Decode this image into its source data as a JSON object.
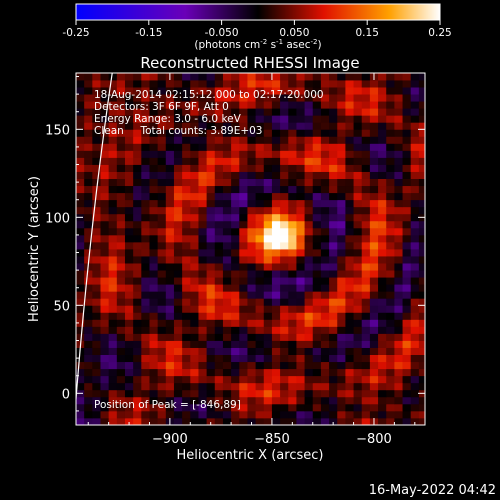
{
  "chart_data": {
    "type": "heatmap",
    "title": "Reconstructed RHESSI Image",
    "xlabel": "Heliocentric X (arcsec)",
    "ylabel": "Heliocentric Y (arcsec)",
    "xlim": [
      -946,
      -775
    ],
    "ylim": [
      -18,
      182
    ],
    "x_ticks": [
      -900,
      -850,
      -800
    ],
    "y_ticks": [
      0,
      50,
      100,
      150
    ],
    "colorbar": {
      "range": [
        -0.25,
        0.25
      ],
      "ticks": [
        "-0.25",
        "-0.15",
        "-0.050",
        "0.050",
        "0.15",
        "0.25"
      ],
      "unit_label_parts": [
        "(photons cm",
        "-2",
        " s",
        "-1",
        " asec",
        "-2",
        ")"
      ],
      "colors": [
        "#0000ff",
        "#6a00b8",
        "#000000",
        "#e01000",
        "#ffa000",
        "#ffffff"
      ]
    },
    "annotations": [
      "18-Aug-2014 02:15:12.000 to 02:17:20.000",
      "Detectors: 3F 6F 9F, Att 0",
      "Energy Range: 3.0 - 6.0 keV",
      "Clean     Total counts: 3.89E+03"
    ],
    "peak_label": "Position of Peak = [-846,89]",
    "peak": {
      "x": -846,
      "y": 89,
      "value": 0.25
    },
    "limb_visible": true,
    "timestamp": "16-May-2022 04:42"
  }
}
